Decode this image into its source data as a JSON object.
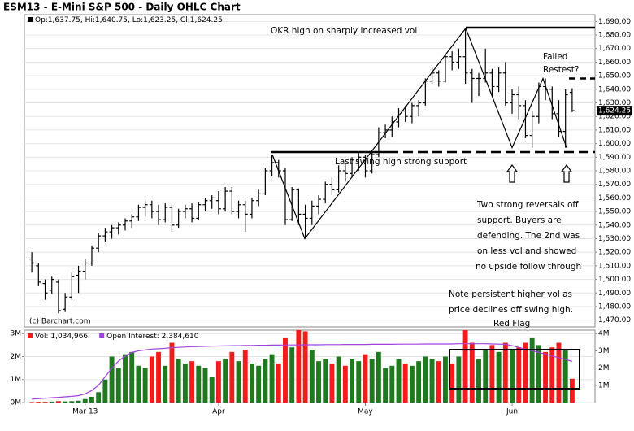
{
  "chart_data": [
    {
      "type": "ohlc",
      "title": "ESM13 - E-Mini S&P 500 - Daily OHLC Chart",
      "legend": "Op:1,637.75, Hi:1,640.75, Lo:1,623.25, Cl:1,624.25",
      "source": "(c) Barchart.com",
      "color": "#000000",
      "open": [
        1515,
        1510,
        1497,
        1492,
        1498,
        1478,
        1487,
        1503,
        1506,
        1512,
        1523,
        1532,
        1535,
        1538,
        1540,
        1543,
        1546,
        1553,
        1555,
        1550,
        1544,
        1553,
        1540,
        1550,
        1552,
        1545,
        1555,
        1558,
        1558,
        1552,
        1565,
        1550,
        1555,
        1548,
        1558,
        1563,
        1580,
        1586,
        1580,
        1544,
        1566,
        1548,
        1545,
        1554,
        1559,
        1570,
        1566,
        1580,
        1578,
        1588,
        1590,
        1580,
        1592,
        1608,
        1610,
        1616,
        1624,
        1620,
        1628,
        1630,
        1646,
        1652,
        1646,
        1664,
        1660,
        1664,
        1652,
        1648,
        1648,
        1652,
        1642,
        1652,
        1630,
        1636,
        1628,
        1606,
        1620,
        1642,
        1640,
        1622,
        1609,
        1637.75
      ],
      "high": [
        1520,
        1512,
        1500,
        1502,
        1500,
        1490,
        1505,
        1510,
        1515,
        1525,
        1534,
        1538,
        1540,
        1542,
        1545,
        1548,
        1555,
        1558,
        1558,
        1555,
        1556,
        1555,
        1552,
        1555,
        1556,
        1557,
        1560,
        1562,
        1565,
        1568,
        1568,
        1558,
        1558,
        1560,
        1566,
        1582,
        1592,
        1588,
        1582,
        1568,
        1567,
        1555,
        1558,
        1562,
        1572,
        1575,
        1584,
        1585,
        1590,
        1593,
        1592,
        1595,
        1612,
        1614,
        1620,
        1626,
        1628,
        1630,
        1632,
        1648,
        1656,
        1654,
        1666,
        1668,
        1670,
        1685,
        1655,
        1652,
        1670,
        1655,
        1656,
        1660,
        1640,
        1642,
        1632,
        1624,
        1645,
        1648,
        1642,
        1632,
        1640,
        1640.75
      ],
      "low": [
        1505,
        1495,
        1485,
        1489,
        1475,
        1476,
        1485,
        1490,
        1500,
        1510,
        1520,
        1528,
        1530,
        1533,
        1536,
        1538,
        1543,
        1546,
        1545,
        1540,
        1542,
        1535,
        1538,
        1545,
        1542,
        1544,
        1550,
        1552,
        1548,
        1550,
        1548,
        1545,
        1535,
        1545,
        1554,
        1562,
        1576,
        1575,
        1540,
        1543,
        1540,
        1530,
        1540,
        1548,
        1556,
        1562,
        1564,
        1572,
        1575,
        1580,
        1575,
        1578,
        1590,
        1604,
        1605,
        1612,
        1616,
        1615,
        1620,
        1628,
        1644,
        1642,
        1645,
        1654,
        1655,
        1644,
        1630,
        1635,
        1645,
        1635,
        1638,
        1628,
        1622,
        1618,
        1604,
        1597,
        1615,
        1632,
        1618,
        1605,
        1597,
        1623.25
      ],
      "close": [
        1512,
        1498,
        1490,
        1500,
        1477,
        1487,
        1502,
        1506,
        1512,
        1523,
        1532,
        1535,
        1538,
        1540,
        1543,
        1546,
        1553,
        1555,
        1550,
        1544,
        1553,
        1540,
        1550,
        1552,
        1545,
        1555,
        1558,
        1560,
        1552,
        1565,
        1550,
        1555,
        1548,
        1558,
        1563,
        1580,
        1586,
        1580,
        1544,
        1566,
        1548,
        1545,
        1554,
        1559,
        1570,
        1566,
        1580,
        1578,
        1588,
        1590,
        1580,
        1592,
        1608,
        1610,
        1616,
        1624,
        1620,
        1628,
        1630,
        1646,
        1652,
        1646,
        1664,
        1660,
        1664,
        1652,
        1648,
        1648,
        1652,
        1642,
        1652,
        1630,
        1636,
        1628,
        1606,
        1620,
        1642,
        1640,
        1622,
        1609,
        1636,
        1624.25
      ],
      "last_price": {
        "value": 1624.25,
        "label": "1,624.25"
      },
      "ylim": [
        1465,
        1695
      ],
      "yticks": [
        {
          "value": 1470,
          "label": "1,470.00"
        },
        {
          "value": 1480,
          "label": "1,480.00"
        },
        {
          "value": 1490,
          "label": "1,490.00"
        },
        {
          "value": 1500,
          "label": "1,500.00"
        },
        {
          "value": 1510,
          "label": "1,510.00"
        },
        {
          "value": 1520,
          "label": "1,520.00"
        },
        {
          "value": 1530,
          "label": "1,530.00"
        },
        {
          "value": 1540,
          "label": "1,540.00"
        },
        {
          "value": 1550,
          "label": "1,550.00"
        },
        {
          "value": 1560,
          "label": "1,560.00"
        },
        {
          "value": 1570,
          "label": "1,570.00"
        },
        {
          "value": 1580,
          "label": "1,580.00"
        },
        {
          "value": 1590,
          "label": "1,590.00"
        },
        {
          "value": 1600,
          "label": "1,600.00"
        },
        {
          "value": 1610,
          "label": "1,610.00"
        },
        {
          "value": 1620,
          "label": "1,620.00"
        },
        {
          "value": 1630,
          "label": "1,630.00"
        },
        {
          "value": 1640,
          "label": "1,640.00"
        },
        {
          "value": 1650,
          "label": "1,650.00"
        },
        {
          "value": 1660,
          "label": "1,660.00"
        },
        {
          "value": 1670,
          "label": "1,670.00"
        },
        {
          "value": 1680,
          "label": "1,680.00"
        },
        {
          "value": 1690,
          "label": "1,690.00"
        }
      ],
      "grid": true,
      "annotations": [
        "OKR high on sharply increased vol",
        "Failed",
        "Restest?",
        "Last swing high strong support",
        "Two strong reversals off",
        "support.  Buyers are",
        "defending.  The 2nd was",
        "on less vol and showed",
        "no upside follow through",
        "Note persistent higher vol as",
        "price declines off swing high.",
        "Red Flag"
      ]
    },
    {
      "type": "bar",
      "categories": [
        null,
        null,
        null,
        null,
        null,
        null,
        null,
        null,
        "Mar 13",
        null,
        null,
        null,
        null,
        null,
        null,
        null,
        null,
        null,
        null,
        null,
        null,
        null,
        null,
        null,
        null,
        null,
        null,
        null,
        "Apr",
        null,
        null,
        null,
        null,
        null,
        null,
        null,
        null,
        null,
        null,
        null,
        null,
        null,
        null,
        null,
        null,
        null,
        null,
        null,
        null,
        null,
        "May",
        null,
        null,
        null,
        null,
        null,
        null,
        null,
        null,
        null,
        null,
        null,
        null,
        null,
        null,
        null,
        null,
        null,
        null,
        null,
        null,
        null,
        "Jun",
        null,
        null,
        null,
        null,
        null,
        null,
        null,
        null,
        null
      ],
      "series": [
        {
          "name": "Vol: 1,034,966",
          "type": "bar",
          "up_color": "#1f7a1f",
          "down_color": "#f21c1c",
          "values": [
            20000,
            30000,
            30000,
            40000,
            60000,
            50000,
            60000,
            80000,
            150000,
            250000,
            450000,
            1000000,
            2000000,
            1500000,
            2100000,
            2200000,
            1600000,
            1500000,
            2000000,
            2200000,
            1600000,
            2600000,
            1900000,
            1700000,
            1800000,
            1600000,
            1500000,
            1100000,
            1800000,
            1900000,
            2200000,
            1800000,
            2300000,
            1700000,
            1600000,
            1900000,
            2100000,
            1700000,
            2800000,
            2400000,
            3200000,
            3100000,
            2300000,
            1800000,
            1900000,
            1700000,
            2000000,
            1600000,
            1900000,
            1800000,
            2100000,
            1900000,
            2200000,
            1500000,
            1600000,
            1900000,
            1700000,
            1600000,
            1800000,
            2000000,
            1900000,
            1800000,
            2000000,
            1700000,
            2000000,
            3400000,
            2600000,
            1900000,
            2300000,
            2500000,
            2200000,
            2600000,
            2300000,
            2400000,
            2600000,
            2800000,
            2500000,
            2200000,
            2400000,
            2600000,
            2300000,
            1034966
          ]
        },
        {
          "name": "Open Interest: 2,384,610",
          "type": "line",
          "color": "#a040e0",
          "axis": "y2",
          "values": [
            200000,
            220000,
            250000,
            280000,
            300000,
            330000,
            360000,
            400000,
            500000,
            700000,
            1000000,
            1500000,
            2000000,
            2400000,
            2700000,
            2900000,
            3000000,
            3050000,
            3100000,
            3120000,
            3150000,
            3180000,
            3200000,
            3220000,
            3240000,
            3250000,
            3260000,
            3270000,
            3280000,
            3290000,
            3300000,
            3300000,
            3310000,
            3310000,
            3320000,
            3320000,
            3330000,
            3330000,
            3340000,
            3340000,
            3340000,
            3350000,
            3350000,
            3350000,
            3360000,
            3360000,
            3360000,
            3370000,
            3370000,
            3370000,
            3370000,
            3380000,
            3380000,
            3380000,
            3380000,
            3390000,
            3390000,
            3390000,
            3390000,
            3400000,
            3400000,
            3400000,
            3400000,
            3400000,
            3410000,
            3410000,
            3410000,
            3410000,
            3410000,
            3400000,
            3390000,
            3380000,
            3300000,
            3200000,
            3100000,
            3000000,
            2900000,
            2800000,
            2700000,
            2600000,
            2500000,
            2384610
          ]
        }
      ],
      "ylim": [
        0,
        3150000
      ],
      "yticks": [
        {
          "value": 0,
          "label": "0M"
        },
        {
          "value": 1000000,
          "label": "1M"
        },
        {
          "value": 2000000,
          "label": "2M"
        },
        {
          "value": 3000000,
          "label": "3M"
        }
      ],
      "y2lim": [
        0,
        4200000
      ],
      "y2ticks": [
        {
          "value": 1000000,
          "label": "1M"
        },
        {
          "value": 2000000,
          "label": "2M"
        },
        {
          "value": 3000000,
          "label": "3M"
        },
        {
          "value": 4000000,
          "label": "4M"
        }
      ],
      "grid": true
    }
  ]
}
